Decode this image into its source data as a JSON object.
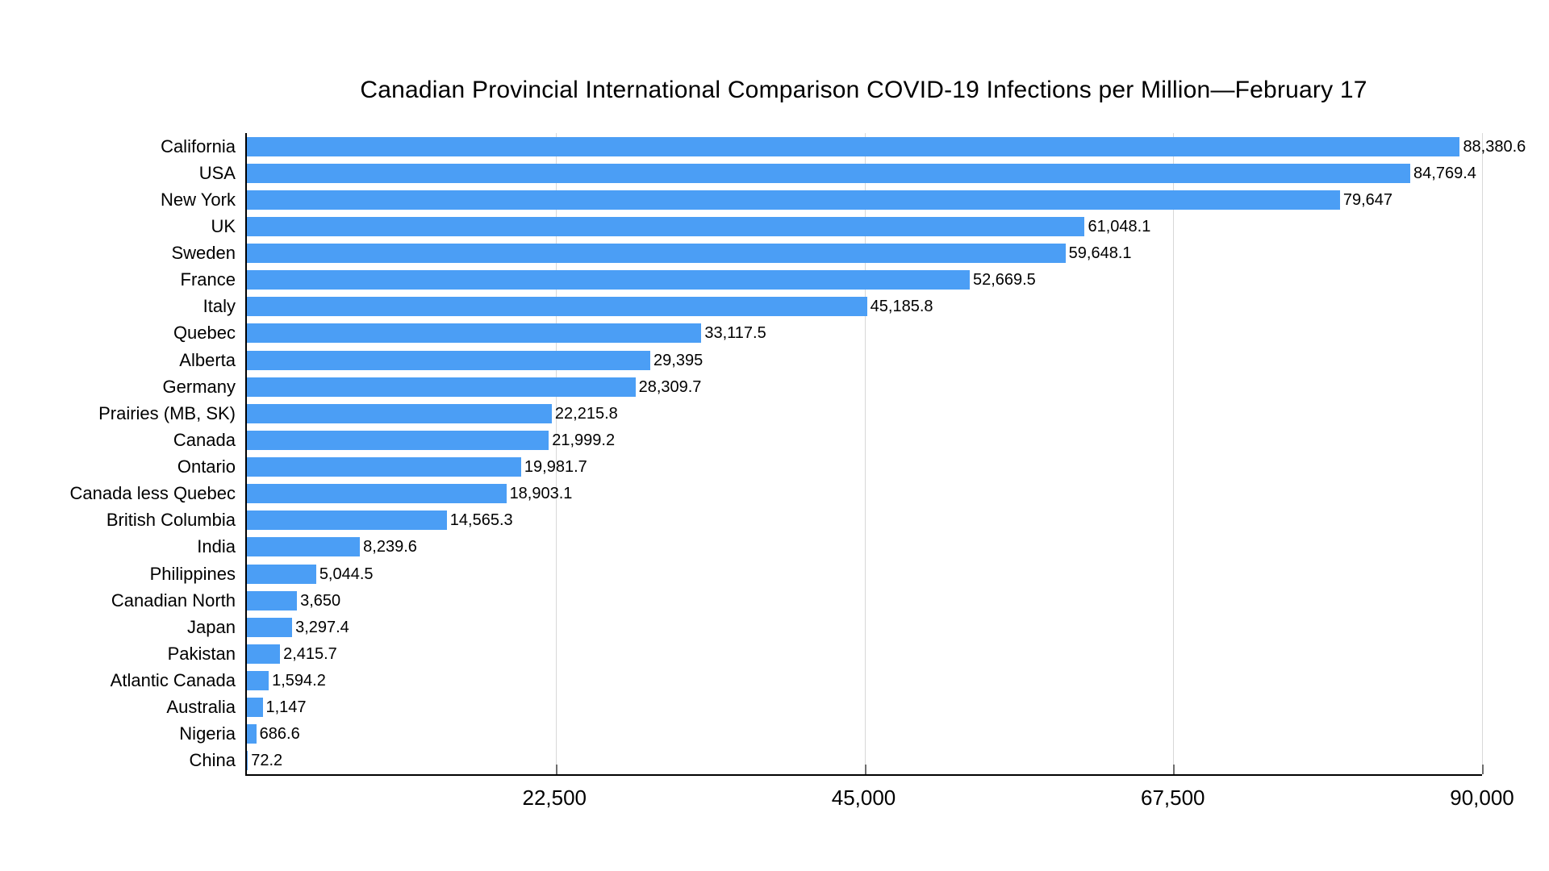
{
  "title": "Canadian Provincial International Comparison COVID-19 Infections per Million—February 17",
  "colors": {
    "bar": "#4b9ef5",
    "gridline": "#d8d8d8",
    "axis": "#000000",
    "tick": "#6e6e6e"
  },
  "chart_data": {
    "type": "bar",
    "orientation": "horizontal",
    "title": "Canadian Provincial International Comparison COVID-19 Infections per Million—February 17",
    "categories": [
      "California",
      "USA",
      "New York",
      "UK",
      "Sweden",
      "France",
      "Italy",
      "Quebec",
      "Alberta",
      "Germany",
      "Prairies (MB, SK)",
      "Canada",
      "Ontario",
      "Canada less Quebec",
      "British Columbia",
      "India",
      "Philippines",
      "Canadian North",
      "Japan",
      "Pakistan",
      "Atlantic Canada",
      "Australia",
      "Nigeria",
      "China"
    ],
    "values": [
      88380.6,
      84769.4,
      79647,
      61048.1,
      59648.1,
      52669.5,
      45185.8,
      33117.5,
      29395,
      28309.7,
      22215.8,
      21999.2,
      19981.7,
      18903.1,
      14565.3,
      8239.6,
      5044.5,
      3650,
      3297.4,
      2415.7,
      1594.2,
      1147,
      686.6,
      72.2
    ],
    "value_labels": [
      "88,380.6",
      "84,769.4",
      "79,647",
      "61,048.1",
      "59,648.1",
      "52,669.5",
      "45,185.8",
      "33,117.5",
      "29,395",
      "28,309.7",
      "22,215.8",
      "21,999.2",
      "19,981.7",
      "18,903.1",
      "14,565.3",
      "8,239.6",
      "5,044.5",
      "3,650",
      "3,297.4",
      "2,415.7",
      "1,594.2",
      "1,147",
      "686.6",
      "72.2"
    ],
    "x_ticks": [
      "22,500",
      "45,000",
      "67,500",
      "90,000"
    ],
    "x_tick_values": [
      22500,
      45000,
      67500,
      90000
    ],
    "xlim": [
      0,
      90000
    ],
    "xlabel": "",
    "ylabel": "",
    "grid": true,
    "legend": false
  }
}
